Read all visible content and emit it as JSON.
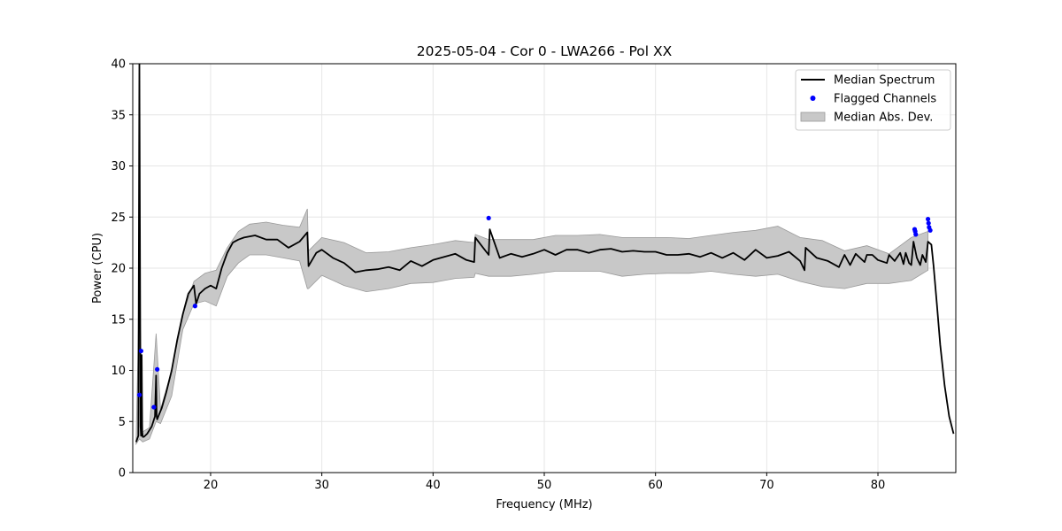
{
  "chart_data": {
    "type": "line",
    "title": "2025-05-04 - Cor 0 - LWA266 - Pol XX",
    "xlabel": "Frequency (MHz)",
    "ylabel": "Power (CPU)",
    "xlim": [
      13,
      87
    ],
    "ylim": [
      0,
      40
    ],
    "xticks": [
      20,
      30,
      40,
      50,
      60,
      70,
      80
    ],
    "yticks": [
      0,
      5,
      10,
      15,
      20,
      25,
      30,
      35,
      40
    ],
    "grid": true,
    "legend_position": "top-right",
    "colors": {
      "median": "#000000",
      "flagged": "#0000ff",
      "mad_fill": "#c8c8c8",
      "mad_edge": "#9a9a9a"
    },
    "legend": [
      {
        "label": "Median Spectrum",
        "kind": "line"
      },
      {
        "label": "Flagged Channels",
        "kind": "marker"
      },
      {
        "label": "Median Abs. Dev.",
        "kind": "patch"
      }
    ],
    "series": [
      {
        "name": "Median Spectrum",
        "x": [
          13.3,
          13.5,
          13.6,
          13.7,
          13.75,
          13.8,
          13.85,
          13.9,
          14.0,
          14.3,
          14.7,
          15.0,
          15.1,
          15.15,
          15.2,
          15.3,
          15.6,
          16.0,
          16.5,
          17.0,
          17.5,
          18.0,
          18.5,
          18.7,
          19.0,
          19.5,
          20.0,
          20.5,
          21.0,
          21.5,
          22.0,
          22.5,
          23.0,
          24.0,
          25.0,
          26.0,
          27.0,
          28.0,
          28.7,
          28.8,
          29.5,
          30.0,
          31.0,
          32.0,
          33.0,
          34.0,
          35.0,
          36.0,
          37.0,
          38.0,
          39.0,
          40.0,
          41.0,
          42.0,
          43.0,
          43.7,
          43.8,
          44.5,
          45.0,
          45.1,
          46.0,
          47.0,
          48.0,
          49.0,
          50.0,
          51.0,
          52.0,
          53.0,
          54.0,
          55.0,
          56.0,
          57.0,
          58.0,
          59.0,
          60.0,
          61.0,
          62.0,
          63.0,
          64.0,
          65.0,
          66.0,
          67.0,
          68.0,
          69.0,
          70.0,
          71.0,
          72.0,
          73.0,
          73.4,
          73.5,
          74.5,
          75.5,
          76.5,
          77.0,
          77.5,
          78.0,
          78.8,
          79.0,
          79.5,
          80.0,
          80.8,
          81.0,
          81.5,
          82.0,
          82.3,
          82.5,
          82.8,
          83.0,
          83.2,
          83.5,
          83.8,
          84.0,
          84.3,
          84.5,
          84.8,
          85.0,
          85.3,
          85.6,
          86.0,
          86.4,
          86.8
        ],
        "values": [
          3.0,
          3.6,
          40.0,
          4.5,
          3.6,
          11.5,
          4.0,
          3.5,
          3.5,
          3.8,
          4.5,
          5.5,
          9.5,
          5.5,
          5.2,
          5.5,
          6.3,
          7.8,
          10.0,
          13.0,
          15.5,
          17.5,
          18.3,
          16.5,
          17.5,
          18.0,
          18.3,
          18.0,
          20.0,
          21.5,
          22.5,
          22.8,
          23.0,
          23.2,
          22.8,
          22.8,
          22.0,
          22.6,
          23.5,
          20.2,
          21.5,
          21.8,
          21.0,
          20.5,
          19.6,
          19.8,
          19.9,
          20.1,
          19.8,
          20.7,
          20.2,
          20.8,
          21.1,
          21.4,
          20.8,
          20.6,
          23.0,
          22.0,
          21.3,
          23.8,
          21.0,
          21.4,
          21.1,
          21.4,
          21.8,
          21.3,
          21.8,
          21.8,
          21.5,
          21.8,
          21.9,
          21.6,
          21.7,
          21.6,
          21.6,
          21.3,
          21.3,
          21.4,
          21.1,
          21.5,
          21.0,
          21.5,
          20.8,
          21.8,
          21.0,
          21.2,
          21.6,
          20.7,
          19.8,
          22.0,
          21.0,
          20.7,
          20.1,
          21.3,
          20.3,
          21.4,
          20.6,
          21.3,
          21.3,
          20.8,
          20.5,
          21.3,
          20.7,
          21.5,
          20.4,
          21.5,
          20.5,
          20.3,
          22.6,
          21.0,
          20.3,
          21.3,
          20.6,
          22.6,
          22.3,
          20.2,
          16.5,
          12.5,
          8.5,
          5.5,
          3.8
        ]
      },
      {
        "name": "Median Abs. Dev.",
        "x": [
          13.3,
          13.6,
          13.9,
          14.5,
          15.1,
          15.5,
          16.5,
          17.5,
          18.5,
          19.5,
          20.5,
          21.5,
          22.5,
          23.5,
          25.0,
          26.5,
          28.0,
          28.7,
          28.8,
          30.0,
          32.0,
          34.0,
          36.0,
          38.0,
          40.0,
          42.0,
          43.7,
          43.8,
          45.0,
          47.0,
          49.0,
          51.0,
          53.0,
          55.0,
          57.0,
          59.0,
          61.0,
          63.0,
          65.0,
          67.0,
          69.0,
          71.0,
          73.0,
          75.0,
          77.0,
          79.0,
          81.0,
          83.0,
          84.5
        ],
        "upper": [
          3.2,
          18.5,
          4.0,
          4.4,
          13.6,
          6.2,
          10.0,
          15.5,
          18.7,
          19.5,
          19.8,
          22.0,
          23.6,
          24.3,
          24.5,
          24.2,
          24.0,
          25.8,
          21.7,
          23.0,
          22.5,
          21.5,
          21.6,
          22.0,
          22.3,
          22.7,
          22.5,
          23.3,
          22.8,
          22.8,
          22.8,
          23.2,
          23.2,
          23.3,
          23.0,
          23.0,
          23.0,
          22.9,
          23.2,
          23.5,
          23.7,
          24.1,
          23.0,
          22.7,
          21.7,
          22.2,
          21.4,
          23.0,
          23.6
        ],
        "lower": [
          2.8,
          3.3,
          3.0,
          3.3,
          5.0,
          4.8,
          7.5,
          14.0,
          16.5,
          16.8,
          16.3,
          19.2,
          20.5,
          21.3,
          21.3,
          21.0,
          20.7,
          18.0,
          18.0,
          19.3,
          18.3,
          17.7,
          18.0,
          18.5,
          18.6,
          19.0,
          19.1,
          19.5,
          19.2,
          19.2,
          19.4,
          19.7,
          19.7,
          19.7,
          19.2,
          19.4,
          19.5,
          19.5,
          19.7,
          19.4,
          19.2,
          19.4,
          18.7,
          18.2,
          18.0,
          18.5,
          18.5,
          18.8,
          19.8
        ]
      },
      {
        "name": "Flagged Channels",
        "x": [
          13.6,
          13.75,
          14.9,
          15.2,
          18.6,
          45.0,
          83.3,
          83.35,
          83.4,
          84.5,
          84.55,
          84.6,
          84.7
        ],
        "values": [
          7.6,
          11.9,
          6.4,
          10.1,
          16.3,
          24.9,
          23.8,
          23.6,
          23.3,
          24.8,
          24.4,
          24.0,
          23.7
        ]
      }
    ]
  }
}
